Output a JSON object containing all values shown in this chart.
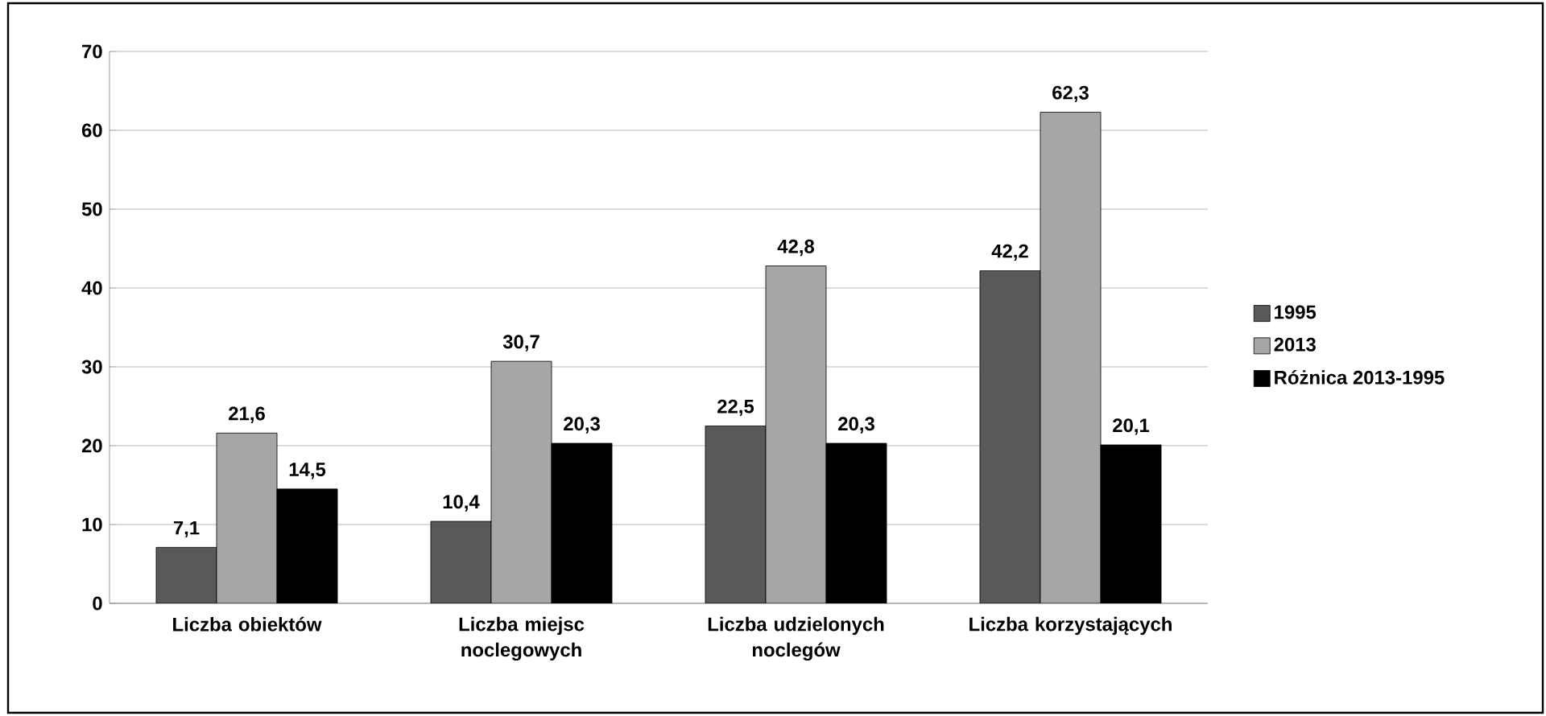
{
  "chart_data": {
    "type": "bar",
    "categories": [
      "Liczba obiektów",
      "Liczba miejsc noclegowych",
      "Liczba udzielonych noclegów",
      "Liczba korzystających"
    ],
    "series": [
      {
        "name": "1995",
        "color": "#595959",
        "values": [
          7.1,
          10.4,
          22.5,
          42.2
        ],
        "value_labels": [
          "7,1",
          "10,4",
          "22,5",
          "42,2"
        ]
      },
      {
        "name": "2013",
        "color": "#a6a6a6",
        "values": [
          21.6,
          30.7,
          42.8,
          62.3
        ],
        "value_labels": [
          "21,6",
          "30,7",
          "42,8",
          "62,3"
        ]
      },
      {
        "name": "Różnica 2013-1995",
        "color": "#000000",
        "values": [
          14.5,
          20.3,
          20.3,
          20.1
        ],
        "value_labels": [
          "14,5",
          "20,3",
          "20,3",
          "20,1"
        ]
      }
    ],
    "ylim": [
      0,
      70
    ],
    "yticks": [
      0,
      10,
      20,
      30,
      40,
      50,
      60,
      70
    ],
    "grid": "y",
    "legend": "right"
  }
}
